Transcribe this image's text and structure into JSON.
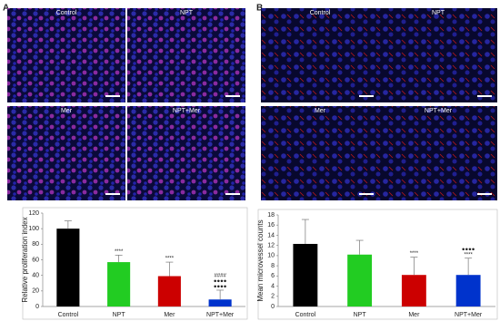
{
  "panels": [
    {
      "label": "A",
      "images": [
        "Control",
        "NPT",
        "Mer",
        "NPT+Mer"
      ]
    },
    {
      "label": "B",
      "images": [
        "Control",
        "NPT",
        "Mer",
        "NPT+Mer"
      ]
    }
  ],
  "chart_data": [
    {
      "type": "bar",
      "ylabel": "Relative proliferation index",
      "categories": [
        "Control",
        "NPT",
        "Mer",
        "NPT+Mer"
      ],
      "values": [
        100,
        57,
        39,
        9
      ],
      "errors": [
        10,
        9,
        18,
        12
      ],
      "colors": [
        "#000000",
        "#22cc22",
        "#cc0000",
        "#0033cc"
      ],
      "annotations": [
        [],
        [
          "****"
        ],
        [
          "****"
        ],
        [
          "####",
          "●●●●",
          "●●●●"
        ]
      ],
      "ylim": [
        0,
        120
      ],
      "yticks": [
        0,
        20,
        40,
        60,
        80,
        100,
        120
      ]
    },
    {
      "type": "bar",
      "ylabel": "Mean microvessel counts",
      "categories": [
        "Control",
        "NPT",
        "Mer",
        "NPT+Mer"
      ],
      "values": [
        12.3,
        10.2,
        6.2,
        6.2
      ],
      "errors": [
        4.8,
        2.8,
        3.5,
        3.3
      ],
      "colors": [
        "#000000",
        "#22cc22",
        "#cc0000",
        "#0033cc"
      ],
      "annotations": [
        [],
        [],
        [
          "****"
        ],
        [
          "●●●●",
          "****"
        ]
      ],
      "ylim": [
        0,
        18
      ],
      "yticks": [
        0,
        2,
        4,
        6,
        8,
        10,
        12,
        14,
        16,
        18
      ]
    }
  ]
}
